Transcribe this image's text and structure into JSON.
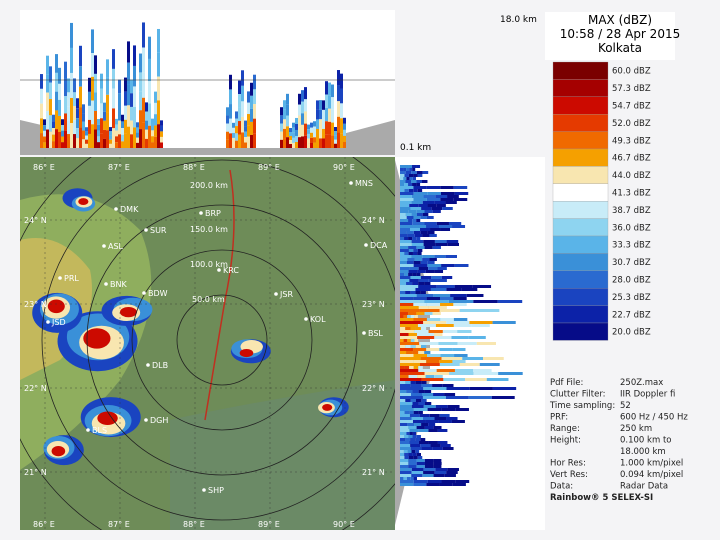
{
  "header": {
    "title": "MAX (dBZ)",
    "datetime": "10:58 / 28 Apr 2015",
    "site": "Kolkata"
  },
  "panels": {
    "top_height": "18.0 km",
    "side_height": "0.1 km"
  },
  "legend": [
    {
      "label": "60.0 dBZ",
      "color": "#7a0000"
    },
    {
      "label": "57.3 dBZ",
      "color": "#a50000"
    },
    {
      "label": "54.7 dBZ",
      "color": "#cc0a00"
    },
    {
      "label": "52.0 dBZ",
      "color": "#e53a00"
    },
    {
      "label": "49.3 dBZ",
      "color": "#f06a00"
    },
    {
      "label": "46.7 dBZ",
      "color": "#f5a000"
    },
    {
      "label": "44.0 dBZ",
      "color": "#f8e6b0"
    },
    {
      "label": "41.3 dBZ",
      "color": "#ffffff"
    },
    {
      "label": "38.7 dBZ",
      "color": "#c8ecf8"
    },
    {
      "label": "36.0 dBZ",
      "color": "#8ed4f0"
    },
    {
      "label": "33.3 dBZ",
      "color": "#5ab4e8"
    },
    {
      "label": "30.7 dBZ",
      "color": "#3a90d8"
    },
    {
      "label": "28.0 dBZ",
      "color": "#2a6ad0"
    },
    {
      "label": "25.3 dBZ",
      "color": "#1a44c0"
    },
    {
      "label": "22.7 dBZ",
      "color": "#0c22a8"
    },
    {
      "label": "20.0 dBZ",
      "color": "#060c88"
    }
  ],
  "info": [
    [
      "Pdf File:",
      "250Z.max"
    ],
    [
      "Clutter Filter:",
      "IIR Doppler fi"
    ],
    [
      "Time sampling:",
      "52"
    ],
    [
      "PRF:",
      "600 Hz / 450 Hz"
    ],
    [
      "Range:",
      "250 km"
    ],
    [
      "Height:",
      "0.100 km to"
    ],
    [
      "",
      "18.000 km"
    ],
    [
      "Hor Res:",
      "1.000 km/pixel"
    ],
    [
      "Vert Res:",
      "0.094 km/pixel"
    ],
    [
      "Data:",
      "Radar Data"
    ]
  ],
  "footer": "Rainbow® 5 SELEX-SI",
  "map": {
    "lon": [
      "86° E",
      "87° E",
      "88° E",
      "89° E",
      "90° E"
    ],
    "lat": [
      "24° N",
      "23° N",
      "22° N",
      "21° N"
    ],
    "rings": [
      "200.0 km",
      "150.0 km",
      "100.0 km",
      "50.0 km"
    ],
    "stations": [
      "MNS",
      "BRP",
      "DMK",
      "SUR",
      "DCA",
      "ASL",
      "KRC",
      "PRL",
      "BNK",
      "BDW",
      "JSR",
      "KOL",
      "BSL",
      "JSD",
      "DLB",
      "BLS",
      "DGH",
      "SHP"
    ]
  }
}
